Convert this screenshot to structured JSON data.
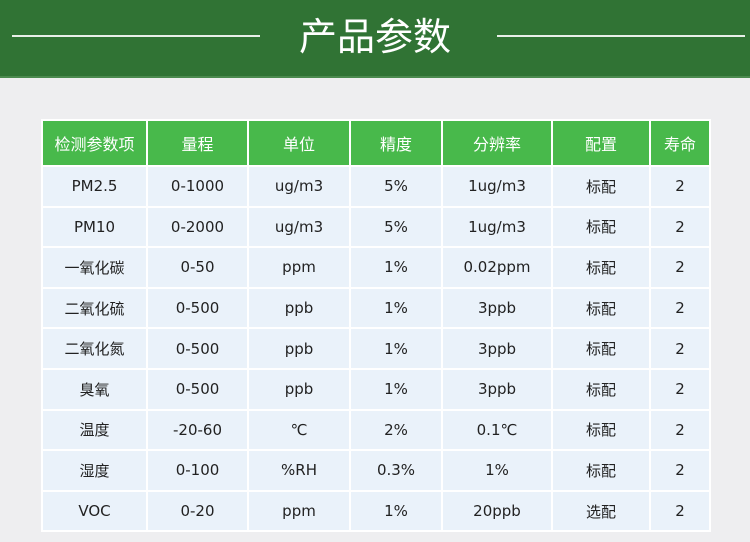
{
  "header": {
    "title": "产品参数"
  },
  "table": {
    "columns": [
      "检测参数项",
      "量程",
      "单位",
      "精度",
      "分辨率",
      "配置",
      "寿命"
    ],
    "rows": [
      [
        "PM2.5",
        "0-1000",
        "ug/m3",
        "5%",
        "1ug/m3",
        "标配",
        "2"
      ],
      [
        "PM10",
        "0-2000",
        "ug/m3",
        "5%",
        "1ug/m3",
        "标配",
        "2"
      ],
      [
        "一氧化碳",
        "0-50",
        "ppm",
        "1%",
        "0.02ppm",
        "标配",
        "2"
      ],
      [
        "二氧化硫",
        "0-500",
        "ppb",
        "1%",
        "3ppb",
        "标配",
        "2"
      ],
      [
        "二氧化氮",
        "0-500",
        "ppb",
        "1%",
        "3ppb",
        "标配",
        "2"
      ],
      [
        "臭氧",
        "0-500",
        "ppb",
        "1%",
        "3ppb",
        "标配",
        "2"
      ],
      [
        "温度",
        "-20-60",
        "℃",
        "2%",
        "0.1℃",
        "标配",
        "2"
      ],
      [
        "湿度",
        "0-100",
        "%RH",
        "0.3%",
        "1%",
        "标配",
        "2"
      ],
      [
        "VOC",
        "0-20",
        "ppm",
        "1%",
        "20ppb",
        "选配",
        "2"
      ]
    ]
  },
  "colors": {
    "banner": "#307334",
    "header": "#48b94b",
    "cell": "#eaf2fa"
  }
}
